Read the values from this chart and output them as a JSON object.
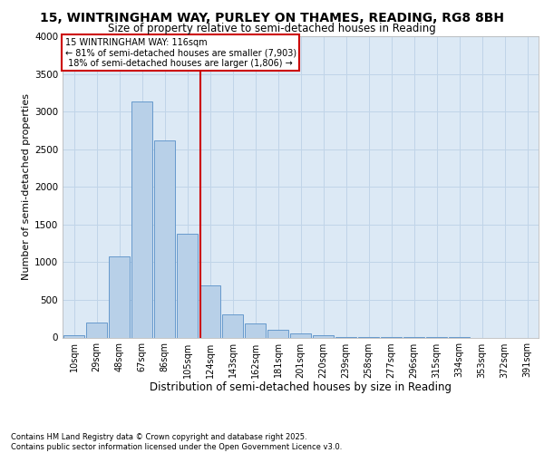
{
  "title_line1": "15, WINTRINGHAM WAY, PURLEY ON THAMES, READING, RG8 8BH",
  "title_line2": "Size of property relative to semi-detached houses in Reading",
  "xlabel": "Distribution of semi-detached houses by size in Reading",
  "ylabel": "Number of semi-detached properties",
  "categories": [
    "10sqm",
    "29sqm",
    "48sqm",
    "67sqm",
    "86sqm",
    "105sqm",
    "124sqm",
    "143sqm",
    "162sqm",
    "181sqm",
    "201sqm",
    "220sqm",
    "239sqm",
    "258sqm",
    "277sqm",
    "296sqm",
    "315sqm",
    "334sqm",
    "353sqm",
    "372sqm",
    "391sqm"
  ],
  "values": [
    25,
    200,
    1080,
    3130,
    2620,
    1380,
    690,
    310,
    185,
    100,
    55,
    25,
    12,
    6,
    4,
    2,
    1,
    1,
    0,
    0,
    0
  ],
  "bar_color": "#b8d0e8",
  "bar_edge_color": "#6699cc",
  "pct_smaller": 81,
  "pct_larger": 18,
  "count_smaller": 7903,
  "count_larger": 1806,
  "vline_color": "#cc0000",
  "annotation_box_edge_color": "#cc0000",
  "ylim": [
    0,
    4000
  ],
  "yticks": [
    0,
    500,
    1000,
    1500,
    2000,
    2500,
    3000,
    3500,
    4000
  ],
  "grid_color": "#c0d4e8",
  "background_color": "#dce9f5",
  "footer_line1": "Contains HM Land Registry data © Crown copyright and database right 2025.",
  "footer_line2": "Contains public sector information licensed under the Open Government Licence v3.0."
}
